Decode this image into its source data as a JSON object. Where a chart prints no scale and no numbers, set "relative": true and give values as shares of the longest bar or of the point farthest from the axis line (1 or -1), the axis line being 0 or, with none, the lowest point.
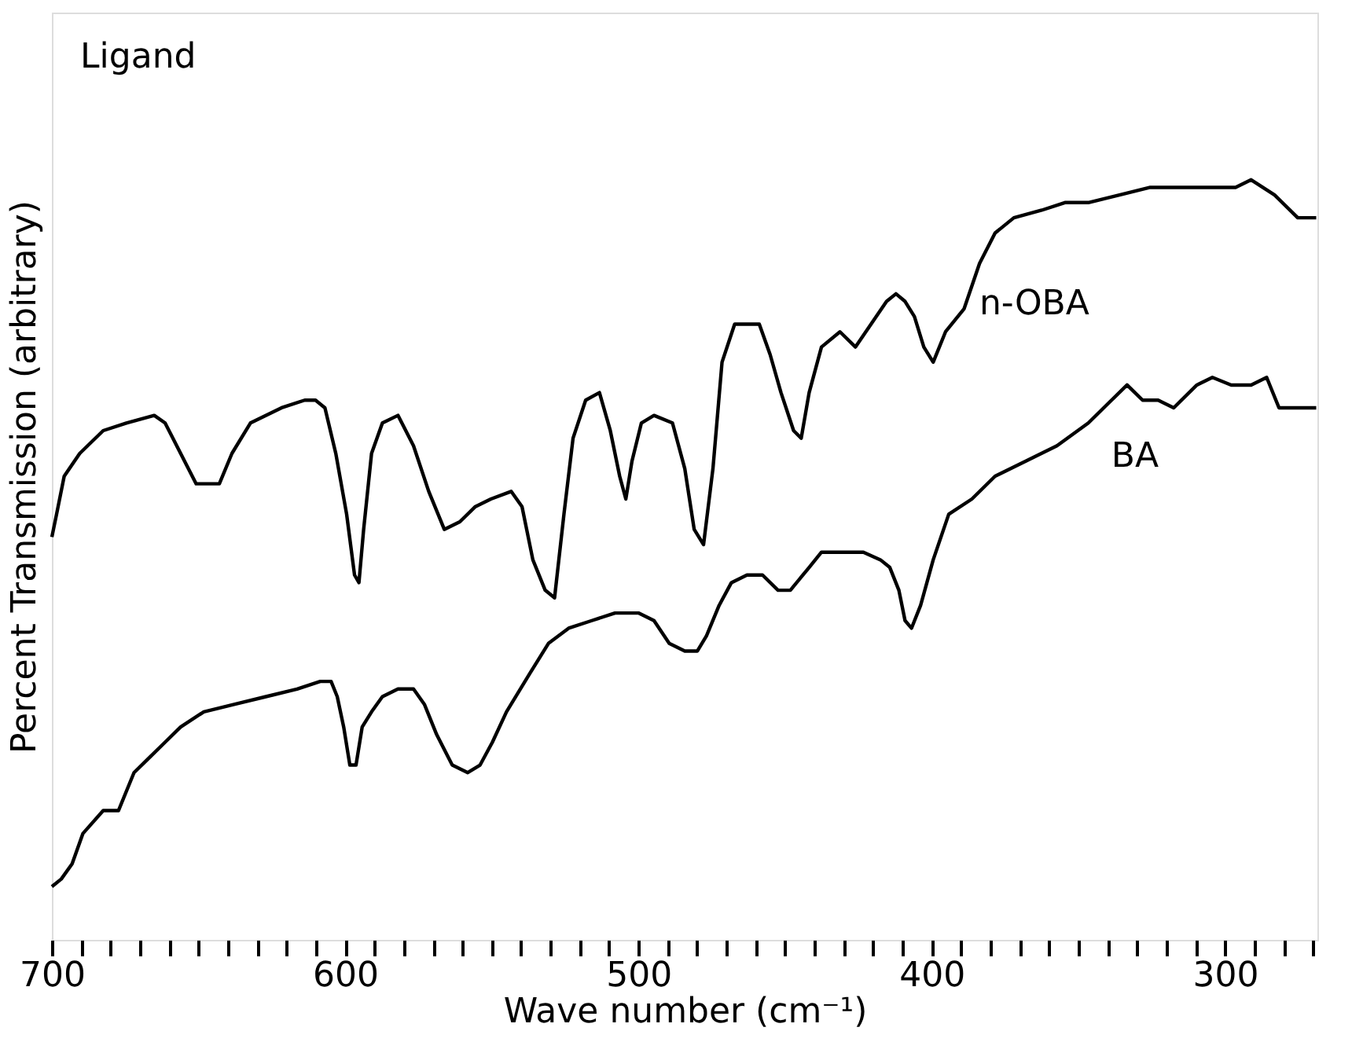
{
  "chart_data": {
    "type": "line",
    "relative": true,
    "xlabel": "Wave number (cm⁻¹)",
    "ylabel": "Percent Transmission (arbitrary)",
    "annotations": [
      "Ligand"
    ],
    "xlim": [
      700,
      268.5
    ],
    "xticks": [
      700,
      {
        "value": 690,
        "label": null
      },
      {
        "value": 680,
        "label": null
      },
      {
        "value": 670,
        "label": null
      },
      {
        "value": 660,
        "label": null
      },
      {
        "value": 650,
        "label": null
      },
      {
        "value": 640,
        "label": null
      },
      {
        "value": 630,
        "label": null
      },
      {
        "value": 620,
        "label": null
      },
      {
        "value": 610,
        "label": null
      },
      600,
      {
        "value": 590,
        "label": null
      },
      {
        "value": 580,
        "label": null
      },
      {
        "value": 570,
        "label": null
      },
      {
        "value": 560,
        "label": null
      },
      {
        "value": 550,
        "label": null
      },
      {
        "value": 540,
        "label": null
      },
      {
        "value": 530,
        "label": null
      },
      {
        "value": 520,
        "label": null
      },
      {
        "value": 510,
        "label": null
      },
      500,
      {
        "value": 490,
        "label": null
      },
      {
        "value": 480,
        "label": null
      },
      {
        "value": 470,
        "label": null
      },
      {
        "value": 460,
        "label": null
      },
      {
        "value": 450,
        "label": null
      },
      {
        "value": 440,
        "label": null
      },
      {
        "value": 430,
        "label": null
      },
      {
        "value": 420,
        "label": null
      },
      {
        "value": 410,
        "label": null
      },
      400,
      {
        "value": 390,
        "label": null
      },
      {
        "value": 380,
        "label": null
      },
      {
        "value": 370,
        "label": null
      },
      {
        "value": 360,
        "label": null
      },
      {
        "value": 350,
        "label": null
      },
      {
        "value": 340,
        "label": null
      },
      {
        "value": 330,
        "label": null
      },
      {
        "value": 320,
        "label": null
      },
      {
        "value": 310,
        "label": null
      },
      300,
      {
        "value": 290,
        "label": null
      },
      {
        "value": 280,
        "label": null
      },
      {
        "value": 270,
        "label": null
      }
    ],
    "grid": false,
    "legend": false,
    "marker": "none",
    "line_style": "solid",
    "series": [
      {
        "name": "n-OBA",
        "color": "#000000",
        "x": [
          700,
          698.4,
          695.8,
          690.5,
          682.5,
          674.6,
          665.1,
          661.4,
          656.1,
          650.8,
          647.1,
          642.9,
          638.6,
          632.3,
          621.7,
          613.8,
          610.1,
          606.9,
          603.2,
          599.5,
          596.8,
          595.3,
          593.7,
          591.0,
          587.3,
          582.0,
          576.7,
          571.5,
          566.2,
          560.9,
          555.6,
          550.3,
          543.4,
          539.7,
          536.0,
          531.8,
          528.6,
          525.4,
          522.3,
          518.0,
          513.3,
          509.6,
          506.4,
          504.3,
          502.2,
          499.0,
          494.7,
          488.4,
          484.2,
          481.0,
          477.8,
          474.6,
          471.5,
          467.2,
          458.8,
          455.1,
          451.4,
          447.1,
          444.5,
          441.8,
          437.6,
          431.3,
          426.0,
          420.7,
          415.4,
          412.2,
          409.1,
          405.9,
          402.7,
          399.5,
          395.3,
          389.0,
          383.7,
          378.4,
          372.0,
          362.5,
          354.6,
          346.6,
          336.0,
          325.5,
          314.9,
          304.3,
          296.4,
          291.1,
          283.1,
          275.2,
          268.9
        ],
        "values": [
          0.53,
          0.56,
          0.61,
          0.64,
          0.67,
          0.68,
          0.69,
          0.68,
          0.64,
          0.6,
          0.6,
          0.6,
          0.64,
          0.68,
          0.7,
          0.71,
          0.71,
          0.7,
          0.64,
          0.56,
          0.48,
          0.47,
          0.54,
          0.64,
          0.68,
          0.69,
          0.65,
          0.59,
          0.54,
          0.55,
          0.57,
          0.58,
          0.59,
          0.57,
          0.5,
          0.46,
          0.45,
          0.56,
          0.66,
          0.71,
          0.72,
          0.67,
          0.61,
          0.58,
          0.63,
          0.68,
          0.69,
          0.68,
          0.62,
          0.54,
          0.52,
          0.62,
          0.76,
          0.81,
          0.81,
          0.77,
          0.72,
          0.67,
          0.66,
          0.72,
          0.78,
          0.8,
          0.78,
          0.81,
          0.84,
          0.85,
          0.84,
          0.82,
          0.78,
          0.76,
          0.8,
          0.83,
          0.89,
          0.93,
          0.95,
          0.96,
          0.97,
          0.97,
          0.98,
          0.99,
          0.99,
          0.99,
          0.99,
          1.0,
          0.98,
          0.95,
          0.95
        ]
      },
      {
        "name": "BA",
        "color": "#000000",
        "x": [
          700,
          696.8,
          693.1,
          689.4,
          682.5,
          677.3,
          672.0,
          666.7,
          661.4,
          656.1,
          648.2,
          637.6,
          627.0,
          616.4,
          608.5,
          604.8,
          602.7,
          600.5,
          598.4,
          596.3,
          594.2,
          591.0,
          587.3,
          582.0,
          576.7,
          573.0,
          568.8,
          563.5,
          558.2,
          554.0,
          549.8,
          545.0,
          537.1,
          530.7,
          523.8,
          515.9,
          508.0,
          500.0,
          494.7,
          489.5,
          484.2,
          479.9,
          476.8,
          472.5,
          468.3,
          463.0,
          457.7,
          452.4,
          448.2,
          441.8,
          437.6,
          433.4,
          428.6,
          423.3,
          417.5,
          414.3,
          411.2,
          409.1,
          406.9,
          403.8,
          399.5,
          394.2,
          386.3,
          378.4,
          367.9,
          357.3,
          346.6,
          338.7,
          333.4,
          328.1,
          322.8,
          317.5,
          309.6,
          304.3,
          297.9,
          291.1,
          285.8,
          281.6,
          275.2,
          268.9
        ],
        "values": [
          0.07,
          0.08,
          0.1,
          0.14,
          0.17,
          0.17,
          0.22,
          0.24,
          0.26,
          0.28,
          0.3,
          0.31,
          0.32,
          0.33,
          0.34,
          0.34,
          0.32,
          0.28,
          0.23,
          0.23,
          0.28,
          0.3,
          0.32,
          0.33,
          0.33,
          0.31,
          0.27,
          0.23,
          0.22,
          0.23,
          0.26,
          0.3,
          0.35,
          0.39,
          0.41,
          0.42,
          0.43,
          0.43,
          0.42,
          0.39,
          0.38,
          0.38,
          0.4,
          0.44,
          0.47,
          0.48,
          0.48,
          0.46,
          0.46,
          0.49,
          0.51,
          0.51,
          0.51,
          0.51,
          0.5,
          0.49,
          0.46,
          0.42,
          0.41,
          0.44,
          0.5,
          0.56,
          0.58,
          0.61,
          0.63,
          0.65,
          0.68,
          0.71,
          0.73,
          0.71,
          0.71,
          0.7,
          0.73,
          0.74,
          0.73,
          0.73,
          0.74,
          0.7,
          0.7,
          0.7
        ]
      }
    ]
  }
}
